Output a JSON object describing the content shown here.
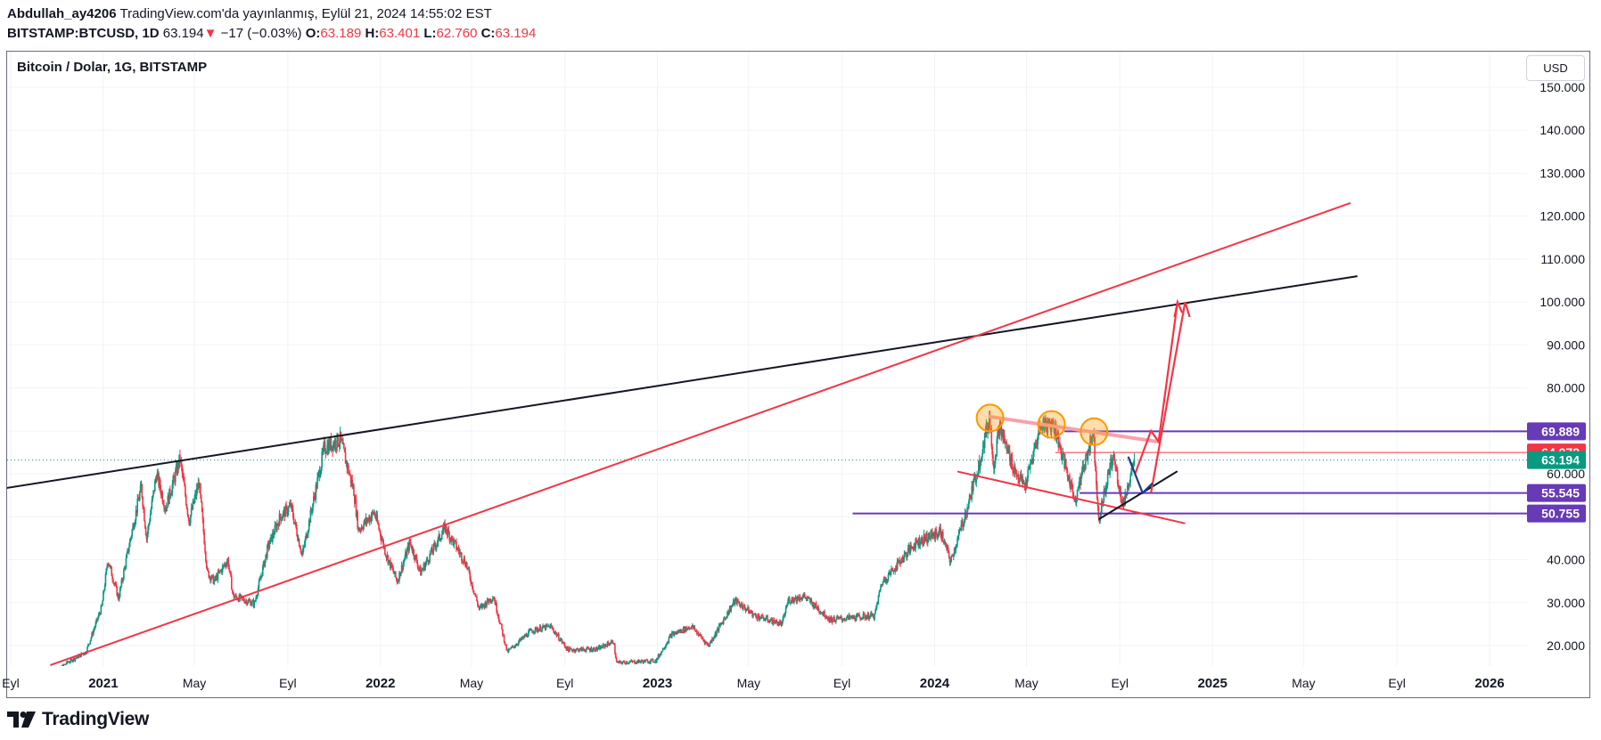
{
  "header": {
    "author": "Abdullah_ay4206",
    "published": "TradingView.com'da yayınlanmış, Eylül 21, 2024 14:55:02 EST",
    "symbol": "BITSTAMP:BTCUSD, 1D",
    "last": "63.194",
    "change_arrow": "▼",
    "change": "−17 (−0.03%)",
    "open_label": "O:",
    "open": "63.189",
    "high_label": "H:",
    "high": "63.401",
    "low_label": "L:",
    "low": "62.760",
    "close_label": "C:",
    "close": "63.194"
  },
  "chart_title": "Bitcoin / Dolar, 1G, BITSTAMP",
  "currency_button": "USD",
  "branding": {
    "name": "TradingView",
    "icon": "tradingview-logo-icon"
  },
  "colors": {
    "bull": "#089981",
    "bear": "#f23645",
    "red_line": "#f23645",
    "black_line": "#131722",
    "purple": "#673ab7",
    "orange": "#ff9800",
    "pink": "#f7a1ac",
    "navy": "#1e3a8a",
    "last_price": "#089981"
  },
  "chart_data": {
    "type": "candlestick",
    "title": "Bitcoin / Dolar, 1G, BITSTAMP",
    "y_scale": "linear",
    "ylim": [
      15000,
      152000
    ],
    "y_ticks": [
      {
        "value": 20000,
        "label": "20.000"
      },
      {
        "value": 30000,
        "label": "30.000"
      },
      {
        "value": 40000,
        "label": "40.000"
      },
      {
        "value": 50000,
        "label": "50.000"
      },
      {
        "value": 60000,
        "label": "60.000"
      },
      {
        "value": 70000,
        "label": "70.000"
      },
      {
        "value": 80000,
        "label": "80.000"
      },
      {
        "value": 90000,
        "label": "90.000"
      },
      {
        "value": 100000,
        "label": "100.000"
      },
      {
        "value": 110000,
        "label": "110.000"
      },
      {
        "value": 120000,
        "label": "120.000"
      },
      {
        "value": 130000,
        "label": "130.000"
      },
      {
        "value": 140000,
        "label": "140.000"
      },
      {
        "value": 150000,
        "label": "150.000"
      }
    ],
    "x_ticks": [
      {
        "date": "2020-09-01",
        "label": "Eyl",
        "strong": false
      },
      {
        "date": "2021-01-01",
        "label": "2021",
        "strong": true
      },
      {
        "date": "2021-05-01",
        "label": "May",
        "strong": false
      },
      {
        "date": "2021-09-01",
        "label": "Eyl",
        "strong": false
      },
      {
        "date": "2022-01-01",
        "label": "2022",
        "strong": true
      },
      {
        "date": "2022-05-01",
        "label": "May",
        "strong": false
      },
      {
        "date": "2022-09-01",
        "label": "Eyl",
        "strong": false
      },
      {
        "date": "2023-01-01",
        "label": "2023",
        "strong": true
      },
      {
        "date": "2023-05-01",
        "label": "May",
        "strong": false
      },
      {
        "date": "2023-09-01",
        "label": "Eyl",
        "strong": false
      },
      {
        "date": "2024-01-01",
        "label": "2024",
        "strong": true
      },
      {
        "date": "2024-05-01",
        "label": "May",
        "strong": false
      },
      {
        "date": "2024-09-01",
        "label": "Eyl",
        "strong": false
      },
      {
        "date": "2025-01-01",
        "label": "2025",
        "strong": true
      },
      {
        "date": "2025-05-01",
        "label": "May",
        "strong": false
      },
      {
        "date": "2025-09-01",
        "label": "Eyl",
        "strong": false
      },
      {
        "date": "2026-01-01",
        "label": "2026",
        "strong": true
      }
    ],
    "price_path": [
      [
        "2020-10-25",
        13000
      ],
      [
        "2020-11-15",
        16000
      ],
      [
        "2020-12-10",
        18500
      ],
      [
        "2020-12-31",
        29000
      ],
      [
        "2021-01-08",
        40000
      ],
      [
        "2021-01-22",
        31000
      ],
      [
        "2021-02-08",
        46000
      ],
      [
        "2021-02-21",
        57000
      ],
      [
        "2021-02-28",
        45000
      ],
      [
        "2021-03-13",
        60000
      ],
      [
        "2021-03-25",
        52000
      ],
      [
        "2021-04-13",
        63500
      ],
      [
        "2021-04-25",
        49000
      ],
      [
        "2021-05-08",
        58000
      ],
      [
        "2021-05-19",
        37000
      ],
      [
        "2021-05-28",
        35000
      ],
      [
        "2021-06-15",
        40000
      ],
      [
        "2021-06-22",
        31500
      ],
      [
        "2021-07-20",
        29800
      ],
      [
        "2021-08-07",
        43000
      ],
      [
        "2021-08-23",
        50000
      ],
      [
        "2021-09-06",
        52500
      ],
      [
        "2021-09-21",
        41000
      ],
      [
        "2021-10-20",
        66000
      ],
      [
        "2021-11-10",
        68000
      ],
      [
        "2021-11-28",
        56000
      ],
      [
        "2021-12-04",
        47000
      ],
      [
        "2021-12-25",
        51000
      ],
      [
        "2022-01-10",
        41000
      ],
      [
        "2022-01-24",
        35000
      ],
      [
        "2022-02-10",
        44000
      ],
      [
        "2022-02-24",
        37000
      ],
      [
        "2022-03-28",
        47500
      ],
      [
        "2022-04-25",
        39000
      ],
      [
        "2022-05-12",
        28500
      ],
      [
        "2022-05-31",
        31500
      ],
      [
        "2022-06-18",
        18500
      ],
      [
        "2022-07-20",
        23500
      ],
      [
        "2022-08-14",
        24500
      ],
      [
        "2022-09-06",
        19000
      ],
      [
        "2022-10-15",
        19200
      ],
      [
        "2022-11-05",
        21000
      ],
      [
        "2022-11-09",
        16000
      ],
      [
        "2022-12-31",
        16500
      ],
      [
        "2023-01-20",
        22500
      ],
      [
        "2023-02-16",
        24500
      ],
      [
        "2023-03-10",
        20000
      ],
      [
        "2023-04-14",
        30500
      ],
      [
        "2023-05-10",
        27000
      ],
      [
        "2023-06-15",
        25000
      ],
      [
        "2023-06-23",
        30500
      ],
      [
        "2023-07-14",
        31500
      ],
      [
        "2023-08-18",
        26000
      ],
      [
        "2023-10-15",
        27000
      ],
      [
        "2023-10-24",
        34500
      ],
      [
        "2023-12-08",
        44000
      ],
      [
        "2024-01-10",
        46500
      ],
      [
        "2024-01-23",
        39500
      ],
      [
        "2024-02-14",
        52000
      ],
      [
        "2024-02-29",
        62000
      ],
      [
        "2024-03-14",
        73000
      ],
      [
        "2024-03-20",
        62000
      ],
      [
        "2024-03-27",
        71000
      ],
      [
        "2024-04-17",
        60500
      ],
      [
        "2024-04-30",
        57000
      ],
      [
        "2024-05-21",
        71500
      ],
      [
        "2024-06-07",
        71500
      ],
      [
        "2024-06-24",
        60500
      ],
      [
        "2024-07-05",
        54000
      ],
      [
        "2024-07-29",
        70000
      ],
      [
        "2024-08-05",
        49500
      ],
      [
        "2024-08-24",
        64500
      ],
      [
        "2024-09-06",
        52500
      ],
      [
        "2024-09-21",
        63194
      ]
    ],
    "drawings": {
      "trend_lines": [
        {
          "color": "black",
          "from": [
            "2020-08-01",
            56000
          ],
          "to": [
            "2025-07-10",
            106000
          ]
        },
        {
          "color": "red",
          "from": [
            "2020-10-24",
            15500
          ],
          "to": [
            "2025-07-01",
            123000
          ]
        },
        {
          "color": "red",
          "from": [
            "2024-02-01",
            60500
          ],
          "to": [
            "2024-11-25",
            48500
          ]
        },
        {
          "color": "black",
          "from": [
            "2024-08-05",
            49500
          ],
          "to": [
            "2024-11-15",
            60500
          ]
        },
        {
          "color": "pink",
          "from": [
            "2024-03-14",
            73300
          ],
          "to": [
            "2024-10-20",
            67500
          ]
        }
      ],
      "horizontal_levels": [
        {
          "value": 69889,
          "label": "69.889",
          "color": "purple",
          "from": "2024-06-20"
        },
        {
          "value": 64972,
          "label": "64.972",
          "color": "red",
          "from": "2024-06-08"
        },
        {
          "value": 55545,
          "label": "55.545",
          "color": "purple",
          "from": "2024-07-10"
        },
        {
          "value": 50755,
          "label": "50.755",
          "color": "purple",
          "from": "2023-09-15"
        }
      ],
      "peak_markers": [
        {
          "date": "2024-03-14",
          "value": 73000
        },
        {
          "date": "2024-06-03",
          "value": 71500
        },
        {
          "date": "2024-07-29",
          "value": 69800
        }
      ],
      "projection_up": [
        [
          "2024-09-21",
          60000
        ],
        [
          "2024-10-12",
          70000
        ],
        [
          "2024-10-22",
          67500
        ],
        [
          "2024-11-16",
          100000
        ]
      ],
      "projection_up_head": [
        [
          "2024-11-12",
          96500
        ],
        [
          "2024-11-16",
          100000
        ],
        [
          "2024-11-22",
          97500
        ]
      ],
      "projection_up_2": [
        [
          "2024-10-12",
          55545
        ],
        [
          "2024-11-26",
          100000
        ],
        [
          "2024-12-02",
          96500
        ]
      ],
      "projection_down": [
        [
          "2024-09-12",
          64000
        ],
        [
          "2024-10-01",
          55545
        ],
        [
          "2024-10-14",
          57800
        ]
      ],
      "last_price": {
        "value": 63194,
        "label": "63.194"
      }
    }
  }
}
